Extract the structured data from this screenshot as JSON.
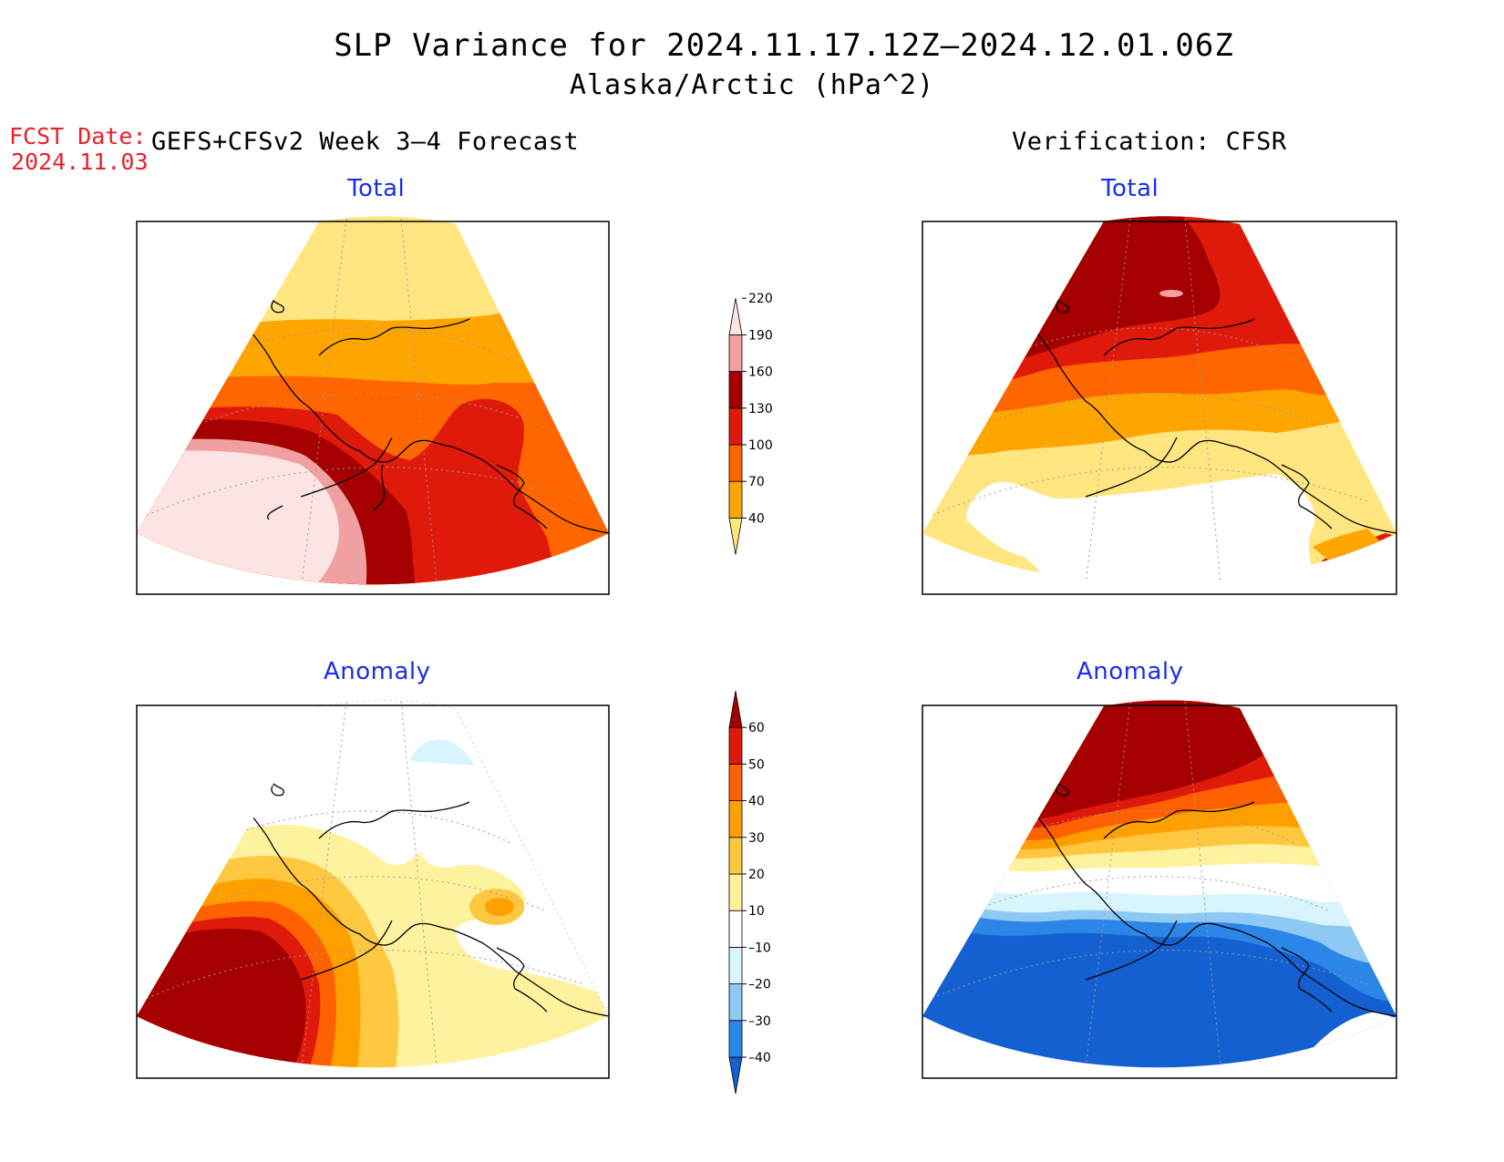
{
  "title": {
    "line1": "SLP Variance for 2024.11.17.12Z–2024.12.01.06Z",
    "line2": "Alaska/Arctic (hPa^2)"
  },
  "fcst_date": {
    "label": "FCST Date:",
    "value": "2024.11.03"
  },
  "left_heading": "GEFS+CFSv2 Week 3–4 Forecast",
  "right_heading": "Verification: CFSR",
  "panels": [
    {
      "id": "forecast-total",
      "title": "Total"
    },
    {
      "id": "verification-total",
      "title": "Total"
    },
    {
      "id": "forecast-anomaly",
      "title": "Anomaly"
    },
    {
      "id": "verification-anomaly",
      "title": "Anomaly"
    }
  ],
  "total_colorbar": {
    "labels": [
      "40",
      "70",
      "100",
      "130",
      "160",
      "190",
      "220"
    ],
    "colors": [
      "#ffe680",
      "#ffa500",
      "#ff6600",
      "#e01a0a",
      "#a50000",
      "#f0a0a0",
      "#fde4e4"
    ]
  },
  "anomaly_colorbar": {
    "labels": [
      "–40",
      "–30",
      "–20",
      "–10",
      "10",
      "20",
      "30",
      "40",
      "50",
      "60"
    ],
    "colors": [
      "#1560d0",
      "#2b86e8",
      "#8ec8f4",
      "#d8f4fc",
      "#ffffff",
      "#fff29e",
      "#ffc840",
      "#ffa000",
      "#ff6000",
      "#e01a0a",
      "#a50000"
    ]
  },
  "palette": {
    "coast": "#000000",
    "grid": "#999999",
    "frame": "#000000"
  }
}
